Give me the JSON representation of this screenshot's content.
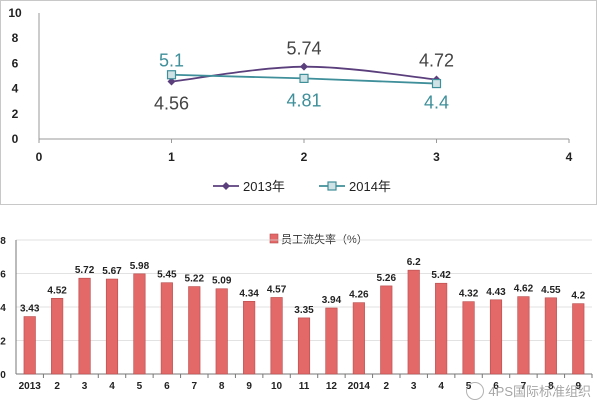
{
  "chart_data": [
    {
      "type": "line",
      "title": "",
      "xlabel": "",
      "ylabel": "",
      "x": [
        1,
        2,
        3
      ],
      "xlim": [
        0,
        4
      ],
      "ylim": [
        0,
        10
      ],
      "xticks": [
        "0",
        "1",
        "2",
        "3",
        "4"
      ],
      "yticks": [
        "0",
        "2",
        "4",
        "6",
        "8",
        "10"
      ],
      "grid": false,
      "legend_position": "bottom",
      "series": [
        {
          "name": "2013年",
          "values": [
            4.56,
            5.74,
            4.72
          ],
          "labels": [
            "4.56",
            "5.74",
            "4.72"
          ],
          "color": "#5b3f7d",
          "marker": "diamond"
        },
        {
          "name": "2014年",
          "values": [
            5.1,
            4.81,
            4.4
          ],
          "labels": [
            "5.1",
            "4.81",
            "4.4"
          ],
          "color": "#3f8f9a",
          "marker": "square"
        }
      ]
    },
    {
      "type": "bar",
      "title": "",
      "xlabel": "",
      "ylabel": "",
      "legend": "员工流失率（%）",
      "legend_position": "top",
      "color": "#e36868",
      "ylim": [
        0,
        8
      ],
      "yticks": [
        "0",
        "2",
        "4",
        "6",
        "8"
      ],
      "grid": true,
      "categories": [
        "2013",
        "2",
        "3",
        "4",
        "5",
        "6",
        "7",
        "8",
        "9",
        "10",
        "11",
        "12",
        "2014",
        "2",
        "3",
        "4",
        "5",
        "6",
        "7",
        "8",
        "9"
      ],
      "values": [
        3.43,
        4.52,
        5.72,
        5.67,
        5.98,
        5.45,
        5.22,
        5.09,
        4.34,
        4.57,
        3.35,
        3.94,
        4.26,
        5.26,
        6.2,
        5.42,
        4.32,
        4.43,
        4.62,
        4.55,
        4.2
      ],
      "labels": [
        "3.43",
        "4.52",
        "5.72",
        "5.67",
        "5.98",
        "5.45",
        "5.22",
        "5.09",
        "4.34",
        "4.57",
        "3.35",
        "3.94",
        "4.26",
        "5.26",
        "6.2",
        "5.42",
        "4.32",
        "4.43",
        "4.62",
        "4.55",
        "4.2"
      ]
    }
  ],
  "watermark": {
    "text": "4PS国际标准组织"
  }
}
